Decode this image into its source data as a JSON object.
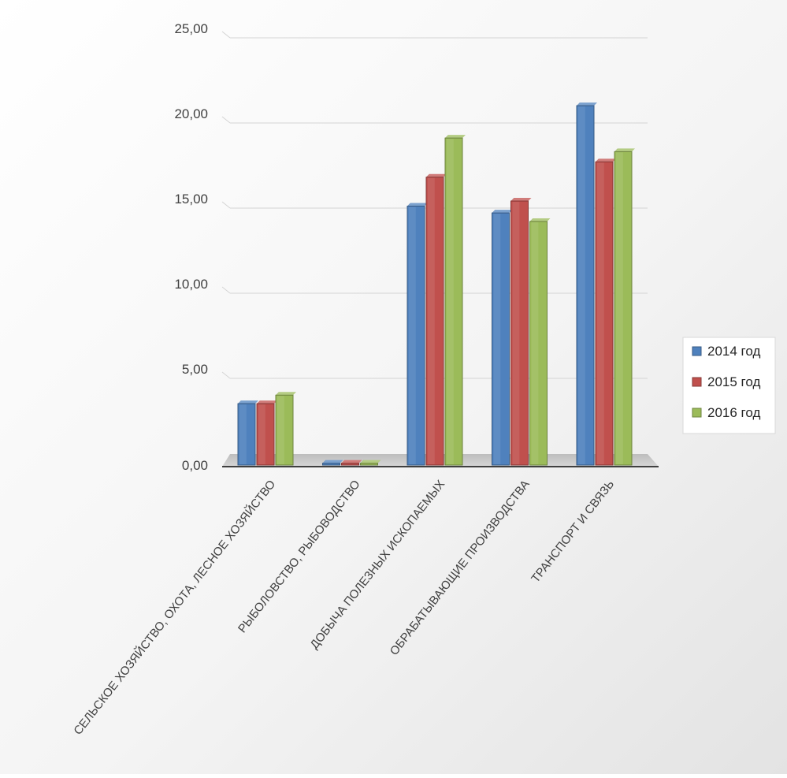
{
  "chart_data": {
    "type": "bar",
    "title": "",
    "xlabel": "",
    "ylabel": "",
    "ylim": [
      0,
      25
    ],
    "yticks": [
      0,
      5,
      10,
      15,
      20,
      25
    ],
    "ytick_labels": [
      "0,00",
      "5,00",
      "10,00",
      "15,00",
      "20,00",
      "25,00"
    ],
    "grid": true,
    "legend_position": "right",
    "categories": [
      "СЕЛЬСКОЕ ХОЗЯЙСТВО, ОХОТА, ЛЕСНОЕ ХОЗЯЙСТВО",
      "РЫБОЛОВСТВО, РЫБОВОДСТВО",
      "ДОБЫЧА ПОЛЕЗНЫХ ИСКОПАЕМЫХ",
      "ОБРАБАТЫВАЮЩИЕ ПРОИЗВОДСТВА",
      "ТРАНСПОРТ И СВЯЗЬ"
    ],
    "series": [
      {
        "name": "2014 год",
        "color": "#4f81bd",
        "values": [
          3.7,
          0.2,
          15.3,
          14.9,
          21.2
        ]
      },
      {
        "name": "2015 год",
        "color": "#c0504d",
        "values": [
          3.7,
          0.2,
          17.0,
          15.6,
          17.9
        ]
      },
      {
        "name": "2016 год",
        "color": "#9bbb59",
        "values": [
          4.2,
          0.2,
          19.3,
          14.4,
          18.5
        ]
      }
    ]
  }
}
